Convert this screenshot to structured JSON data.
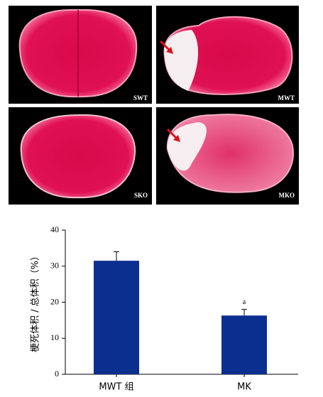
{
  "panels": [
    {
      "label": "SWT"
    },
    {
      "label": "MWT"
    },
    {
      "label": "SKO"
    },
    {
      "label": "MKO"
    }
  ],
  "chart_data": {
    "type": "bar",
    "ylabel": "梗死体积 / 总体积（%）",
    "categories": [
      "MWT 组",
      "MK"
    ],
    "values": [
      31.5,
      16.3
    ],
    "errors": [
      2.5,
      1.7
    ],
    "significance": [
      null,
      "a"
    ],
    "color": "#0a2f8f",
    "ylim": [
      0,
      40
    ],
    "yticks": [
      0,
      10,
      20,
      30,
      40
    ]
  }
}
